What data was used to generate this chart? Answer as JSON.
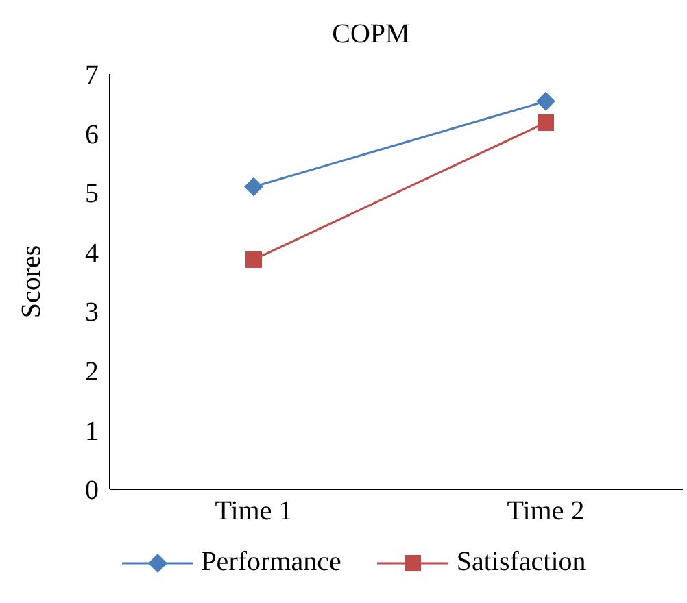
{
  "chart_data": {
    "type": "line",
    "title": "COPM",
    "ylabel": "Scores",
    "categories": [
      "Time 1",
      "Time 2"
    ],
    "series": [
      {
        "name": "Performance",
        "color": "#4a7ebb",
        "marker": "diamond",
        "values": [
          5.1,
          6.54
        ]
      },
      {
        "name": "Satisfaction",
        "color": "#be4b48",
        "marker": "square",
        "values": [
          3.87,
          6.18
        ]
      }
    ],
    "ylim": [
      0,
      7
    ],
    "yticks": [
      0,
      1,
      2,
      3,
      4,
      5,
      6,
      7
    ],
    "grid": false,
    "legend": "bottom"
  }
}
